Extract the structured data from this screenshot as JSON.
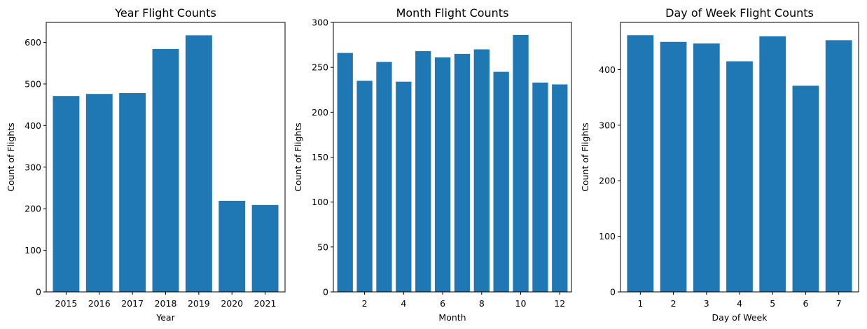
{
  "chart_data": [
    {
      "type": "bar",
      "title": "Year Flight Counts",
      "xlabel": "Year",
      "ylabel": "Count of Flights",
      "categories": [
        "2015",
        "2016",
        "2017",
        "2018",
        "2019",
        "2020",
        "2021"
      ],
      "values": [
        471,
        476,
        478,
        584,
        617,
        219,
        209
      ],
      "xticks": [
        "2015",
        "2016",
        "2017",
        "2018",
        "2019",
        "2020",
        "2021"
      ],
      "yticks": [
        0,
        100,
        200,
        300,
        400,
        500,
        600
      ],
      "ylim": [
        0,
        648
      ],
      "color": "#1f77b4",
      "grid": false
    },
    {
      "type": "bar",
      "title": "Month Flight Counts",
      "xlabel": "Month",
      "ylabel": "Count of Flights",
      "categories": [
        "1",
        "2",
        "3",
        "4",
        "5",
        "6",
        "7",
        "8",
        "9",
        "10",
        "11",
        "12"
      ],
      "values": [
        266,
        235,
        256,
        234,
        268,
        261,
        265,
        270,
        245,
        286,
        233,
        231
      ],
      "xticks": [
        "2",
        "4",
        "6",
        "8",
        "10",
        "12"
      ],
      "yticks": [
        0,
        50,
        100,
        150,
        200,
        250,
        300
      ],
      "ylim": [
        0,
        300
      ],
      "color": "#1f77b4",
      "grid": false
    },
    {
      "type": "bar",
      "title": "Day of Week Flight Counts",
      "xlabel": "Day of Week",
      "ylabel": "Count of Flights",
      "categories": [
        "1",
        "2",
        "3",
        "4",
        "5",
        "6",
        "7"
      ],
      "values": [
        462,
        450,
        447,
        415,
        460,
        371,
        453
      ],
      "xticks": [
        "1",
        "2",
        "3",
        "4",
        "5",
        "6",
        "7"
      ],
      "yticks": [
        0,
        100,
        200,
        300,
        400
      ],
      "ylim": [
        0,
        485
      ],
      "color": "#1f77b4",
      "grid": false
    }
  ]
}
